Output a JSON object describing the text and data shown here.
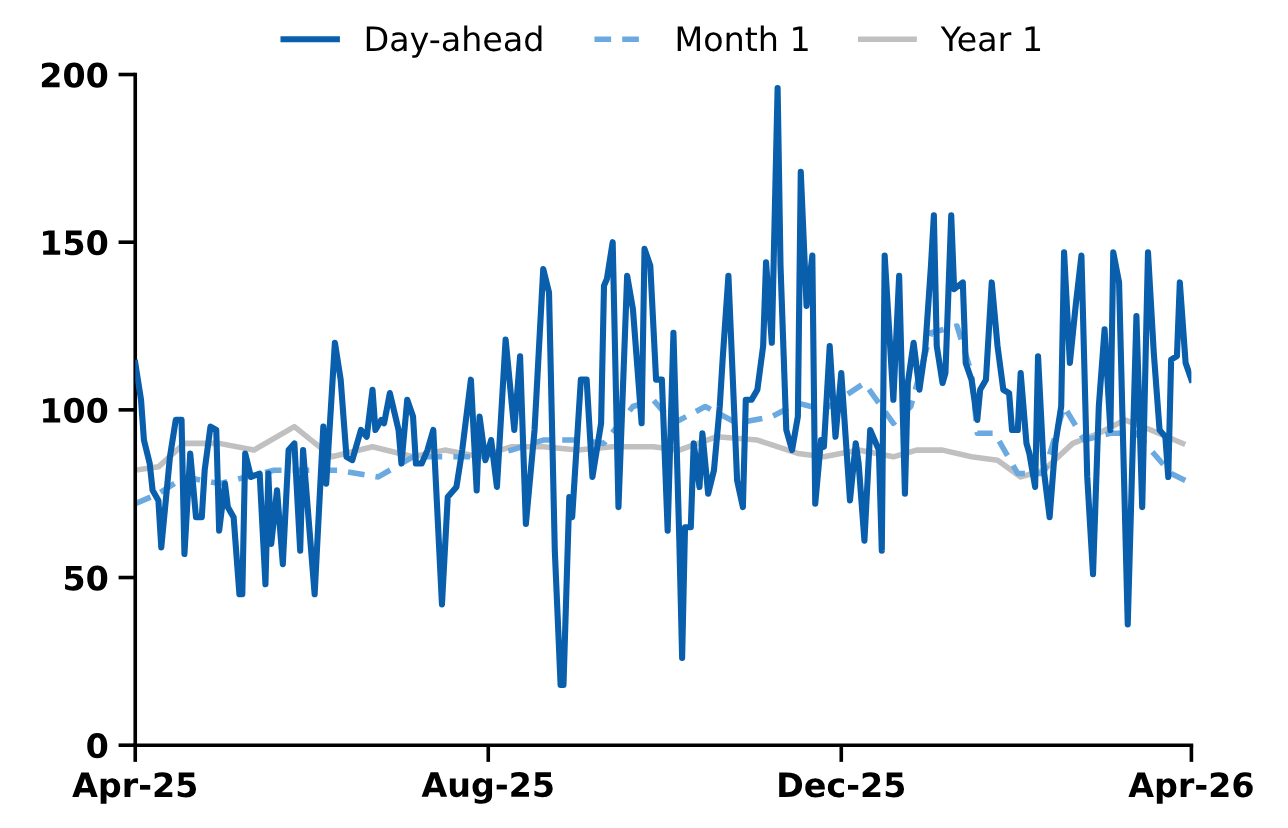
{
  "chart_data": {
    "type": "line",
    "xlim": [
      "2025-04-01",
      "2026-04-01"
    ],
    "xticks": [
      {
        "value": "2025-04-01",
        "label": "Apr-25"
      },
      {
        "value": "2025-08-01",
        "label": "Aug-25"
      },
      {
        "value": "2025-12-01",
        "label": "Dec-25"
      },
      {
        "value": "2026-04-01",
        "label": "Apr-26"
      }
    ],
    "ylim": [
      0,
      200
    ],
    "yticks": [
      0,
      50,
      100,
      150,
      200
    ],
    "grid": false,
    "legend": "top",
    "marker": "none",
    "series": [
      {
        "name": "Day-ahead",
        "color": "#0a5fad",
        "line_style": "solid",
        "x": [
          "2025-04-01",
          "2025-04-03",
          "2025-04-04",
          "2025-04-06",
          "2025-04-07",
          "2025-04-09",
          "2025-04-10",
          "2025-04-13",
          "2025-04-15",
          "2025-04-17",
          "2025-04-18",
          "2025-04-20",
          "2025-04-22",
          "2025-04-24",
          "2025-04-25",
          "2025-04-27",
          "2025-04-29",
          "2025-04-30",
          "2025-05-02",
          "2025-05-03",
          "2025-05-05",
          "2025-05-07",
          "2025-05-08",
          "2025-05-09",
          "2025-05-11",
          "2025-05-14",
          "2025-05-16",
          "2025-05-17",
          "2025-05-18",
          "2025-05-20",
          "2025-05-22",
          "2025-05-24",
          "2025-05-26",
          "2025-05-28",
          "2025-05-29",
          "2025-06-02",
          "2025-06-05",
          "2025-06-06",
          "2025-06-08",
          "2025-06-09",
          "2025-06-11",
          "2025-06-13",
          "2025-06-15",
          "2025-06-18",
          "2025-06-20",
          "2025-06-22",
          "2025-06-23",
          "2025-06-25",
          "2025-06-26",
          "2025-06-28",
          "2025-07-01",
          "2025-07-02",
          "2025-07-04",
          "2025-07-06",
          "2025-07-07",
          "2025-07-09",
          "2025-07-11",
          "2025-07-13",
          "2025-07-16",
          "2025-07-18",
          "2025-07-21",
          "2025-07-23",
          "2025-07-26",
          "2025-07-28",
          "2025-07-29",
          "2025-07-31",
          "2025-08-02",
          "2025-08-04",
          "2025-08-07",
          "2025-08-10",
          "2025-08-12",
          "2025-08-14",
          "2025-08-17",
          "2025-08-20",
          "2025-08-22",
          "2025-08-24",
          "2025-08-26",
          "2025-08-27",
          "2025-08-29",
          "2025-08-30",
          "2025-09-02",
          "2025-09-04",
          "2025-09-06",
          "2025-09-09",
          "2025-09-10",
          "2025-09-11",
          "2025-09-13",
          "2025-09-15",
          "2025-09-18",
          "2025-09-20",
          "2025-09-23",
          "2025-09-24",
          "2025-09-26",
          "2025-09-28",
          "2025-09-30",
          "2025-10-02",
          "2025-10-04",
          "2025-10-06",
          "2025-10-07",
          "2025-10-08",
          "2025-10-10",
          "2025-10-11",
          "2025-10-13",
          "2025-10-14",
          "2025-10-16",
          "2025-10-18",
          "2025-10-20",
          "2025-10-21",
          "2025-10-23",
          "2025-10-26",
          "2025-10-28",
          "2025-10-29",
          "2025-10-31",
          "2025-11-02",
          "2025-11-04",
          "2025-11-05",
          "2025-11-07",
          "2025-11-09",
          "2025-11-10",
          "2025-11-12",
          "2025-11-14",
          "2025-11-16",
          "2025-11-17",
          "2025-11-19",
          "2025-11-21",
          "2025-11-22",
          "2025-11-24",
          "2025-11-25",
          "2025-11-27",
          "2025-11-29",
          "2025-12-01",
          "2025-12-04",
          "2025-12-06",
          "2025-12-07",
          "2025-12-09",
          "2025-12-11",
          "2025-12-14",
          "2025-12-15",
          "2025-12-16",
          "2025-12-19",
          "2025-12-21",
          "2025-12-23",
          "2025-12-24",
          "2025-12-26",
          "2025-12-28",
          "2025-12-30",
          "2026-01-01",
          "2026-01-02",
          "2026-01-03",
          "2026-01-05",
          "2026-01-06",
          "2026-01-08",
          "2026-01-09",
          "2026-01-12",
          "2026-01-13",
          "2026-01-15",
          "2026-01-17",
          "2026-01-18",
          "2026-01-20",
          "2026-01-22",
          "2026-01-24",
          "2026-01-26",
          "2026-01-28",
          "2026-01-29",
          "2026-01-31",
          "2026-02-01",
          "2026-02-03",
          "2026-02-04",
          "2026-02-06",
          "2026-02-07",
          "2026-02-09",
          "2026-02-11",
          "2026-02-13",
          "2026-02-15",
          "2026-02-16",
          "2026-02-18",
          "2026-02-20",
          "2026-02-22",
          "2026-02-24",
          "2026-02-26",
          "2026-02-28",
          "2026-03-02",
          "2026-03-04",
          "2026-03-05",
          "2026-03-07",
          "2026-03-09",
          "2026-03-10",
          "2026-03-13",
          "2026-03-15",
          "2026-03-17",
          "2026-03-19",
          "2026-03-21",
          "2026-03-23",
          "2026-03-24",
          "2026-03-25",
          "2026-03-27",
          "2026-03-28",
          "2026-03-30",
          "2026-04-01"
        ],
        "values": [
          114,
          103,
          91,
          84,
          76,
          73,
          59,
          86,
          97,
          97,
          57,
          87,
          68,
          68,
          82,
          95,
          94,
          64,
          78,
          71,
          68,
          45,
          45,
          87,
          80,
          81,
          48,
          81,
          60,
          76,
          54,
          88,
          90,
          58,
          88,
          45,
          95,
          78,
          106,
          120,
          109,
          86,
          85,
          94,
          92,
          106,
          94,
          97,
          96,
          105,
          94,
          84,
          103,
          98,
          84,
          84,
          88,
          94,
          42,
          74,
          77,
          88,
          109,
          76,
          98,
          85,
          91,
          77,
          121,
          94,
          116,
          66,
          94,
          142,
          135,
          58,
          18,
          18,
          74,
          68,
          109,
          109,
          80,
          96,
          137,
          139,
          150,
          71,
          140,
          130,
          96,
          148,
          143,
          109,
          109,
          64,
          123,
          62,
          26,
          65,
          65,
          90,
          77,
          93,
          75,
          82,
          101,
          115,
          140,
          79,
          71,
          103,
          103,
          106,
          119,
          144,
          120,
          196,
          143,
          94,
          88,
          98,
          171,
          131,
          146,
          72,
          91,
          89,
          119,
          92,
          111,
          73,
          90,
          84,
          61,
          94,
          88,
          58,
          146,
          103,
          140,
          75,
          108,
          120,
          106,
          118,
          143,
          158,
          119,
          108,
          111,
          158,
          136,
          138,
          114,
          109,
          97,
          106,
          109,
          138,
          119,
          106,
          105,
          94,
          94,
          111,
          90,
          87,
          77,
          116,
          82,
          68,
          90,
          101,
          147,
          114,
          131,
          146,
          80,
          51,
          101,
          124,
          94,
          147,
          138,
          70,
          36,
          128,
          71,
          147,
          117,
          94,
          92,
          80,
          115,
          116,
          138,
          114,
          109
        ]
      },
      {
        "name": "Month 1",
        "color": "#6aaae0",
        "line_style": "dashed",
        "x": [
          "2025-04-01",
          "2025-04-09",
          "2025-04-18",
          "2025-04-30",
          "2025-05-19",
          "2025-05-30",
          "2025-06-10",
          "2025-06-24",
          "2025-07-06",
          "2025-07-17",
          "2025-07-29",
          "2025-08-09",
          "2025-08-20",
          "2025-09-01",
          "2025-09-10",
          "2025-09-20",
          "2025-09-27",
          "2025-10-04",
          "2025-10-15",
          "2025-10-26",
          "2025-11-07",
          "2025-11-16",
          "2025-11-25",
          "2025-12-09",
          "2025-12-19",
          "2025-12-25",
          "2026-01-01",
          "2026-01-10",
          "2026-01-15",
          "2026-01-17",
          "2026-01-23",
          "2026-01-31",
          "2026-02-09",
          "2026-02-16",
          "2026-02-23",
          "2026-03-04",
          "2026-03-13",
          "2026-03-19",
          "2026-03-25",
          "2026-04-01"
        ],
        "values": [
          72,
          75,
          80,
          78,
          82,
          82,
          82,
          80,
          86,
          86,
          86,
          88,
          91,
          91,
          90,
          101,
          103,
          96,
          101,
          96,
          98,
          102,
          100,
          108,
          96,
          101,
          123,
          125,
          111,
          93,
          93,
          81,
          81,
          101,
          91,
          93,
          93,
          87,
          81,
          78
        ]
      },
      {
        "name": "Year 1",
        "color": "#c0c0c0",
        "line_style": "solid",
        "x": [
          "2025-04-01",
          "2025-04-09",
          "2025-04-18",
          "2025-04-30",
          "2025-05-12",
          "2025-05-26",
          "2025-06-08",
          "2025-06-22",
          "2025-07-06",
          "2025-07-17",
          "2025-07-29",
          "2025-08-09",
          "2025-08-20",
          "2025-09-01",
          "2025-09-13",
          "2025-09-27",
          "2025-10-06",
          "2025-10-19",
          "2025-11-02",
          "2025-11-16",
          "2025-11-25",
          "2025-12-07",
          "2025-12-19",
          "2025-12-27",
          "2026-01-05",
          "2026-01-15",
          "2026-01-24",
          "2026-02-01",
          "2026-02-09",
          "2026-02-19",
          "2026-02-28",
          "2026-03-09",
          "2026-03-18",
          "2026-03-29"
        ],
        "values": [
          82,
          83,
          90,
          90,
          88,
          95,
          86,
          89,
          86,
          88,
          86,
          89,
          89,
          88,
          89,
          89,
          88,
          92,
          91,
          87,
          86,
          88,
          86,
          88,
          88,
          86,
          85,
          80,
          82,
          90,
          93,
          97,
          94,
          90
        ]
      }
    ]
  }
}
